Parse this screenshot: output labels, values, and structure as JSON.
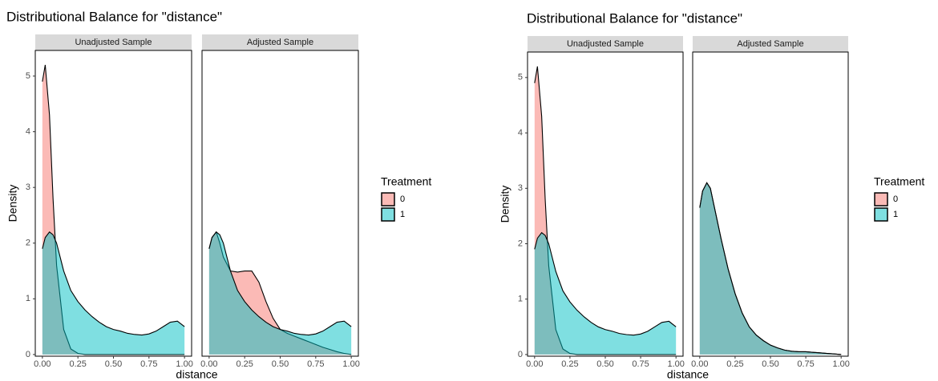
{
  "chart_data": [
    {
      "type": "area",
      "title": "Distributional Balance for \"distance\"",
      "xlabel": "distance",
      "ylabel": "Density",
      "legend_title": "Treatment",
      "alpha": 0.5,
      "series": [
        {
          "name": "0",
          "color": "#F8766D"
        },
        {
          "name": "1",
          "color": "#00BFC4"
        }
      ],
      "x": [
        0,
        0.02,
        0.05,
        0.075,
        0.1,
        0.15,
        0.2,
        0.25,
        0.3,
        0.35,
        0.4,
        0.45,
        0.5,
        0.55,
        0.6,
        0.65,
        0.7,
        0.75,
        0.8,
        0.85,
        0.9,
        0.95,
        1.0
      ],
      "xlim": [
        -0.05,
        1.05
      ],
      "xticks": [
        {
          "value": 0,
          "label": "0.00"
        },
        {
          "value": 0.25,
          "label": "0.25"
        },
        {
          "value": 0.5,
          "label": "0.50"
        },
        {
          "value": 0.75,
          "label": "0.75"
        },
        {
          "value": 1,
          "label": "1.00"
        }
      ],
      "ylim": [
        -0.03,
        5.46
      ],
      "yticks": [
        0,
        1,
        2,
        3,
        4,
        5
      ],
      "facets": [
        {
          "title": "Unadjusted Sample",
          "values": [
            [
              4.9,
              5.2,
              4.3,
              2.8,
              1.6,
              0.45,
              0.1,
              0.02,
              0,
              0,
              0,
              0,
              0,
              0,
              0,
              0,
              0,
              0,
              0,
              0,
              0,
              0,
              0
            ],
            [
              1.9,
              2.1,
              2.2,
              2.15,
              2.0,
              1.5,
              1.15,
              0.95,
              0.8,
              0.68,
              0.58,
              0.5,
              0.45,
              0.42,
              0.38,
              0.36,
              0.35,
              0.37,
              0.42,
              0.5,
              0.58,
              0.6,
              0.5
            ]
          ]
        },
        {
          "title": "Adjusted Sample",
          "values": [
            [
              1.9,
              2.1,
              2.2,
              2.0,
              1.75,
              1.5,
              1.48,
              1.5,
              1.5,
              1.3,
              0.95,
              0.65,
              0.45,
              0.38,
              0.33,
              0.28,
              0.23,
              0.18,
              0.13,
              0.09,
              0.05,
              0.02,
              0
            ],
            [
              1.9,
              2.1,
              2.2,
              2.15,
              2.0,
              1.5,
              1.15,
              0.95,
              0.8,
              0.68,
              0.58,
              0.5,
              0.45,
              0.42,
              0.38,
              0.36,
              0.35,
              0.37,
              0.42,
              0.5,
              0.58,
              0.6,
              0.5
            ]
          ]
        }
      ]
    },
    {
      "type": "area",
      "title": "Distributional Balance for \"distance\"",
      "xlabel": "distance",
      "ylabel": "Density",
      "legend_title": "Treatment",
      "alpha": 0.5,
      "series": [
        {
          "name": "0",
          "color": "#F8766D"
        },
        {
          "name": "1",
          "color": "#00BFC4"
        }
      ],
      "x": [
        0,
        0.02,
        0.05,
        0.075,
        0.1,
        0.15,
        0.2,
        0.25,
        0.3,
        0.35,
        0.4,
        0.45,
        0.5,
        0.55,
        0.6,
        0.65,
        0.7,
        0.75,
        0.8,
        0.85,
        0.9,
        0.95,
        1.0
      ],
      "xlim": [
        -0.05,
        1.05
      ],
      "xticks": [
        {
          "value": 0,
          "label": "0.00"
        },
        {
          "value": 0.25,
          "label": "0.25"
        },
        {
          "value": 0.5,
          "label": "0.50"
        },
        {
          "value": 0.75,
          "label": "0.75"
        },
        {
          "value": 1,
          "label": "1.00"
        }
      ],
      "ylim": [
        -0.03,
        5.46
      ],
      "yticks": [
        0,
        1,
        2,
        3,
        4,
        5
      ],
      "facets": [
        {
          "title": "Unadjusted Sample",
          "values": [
            [
              4.9,
              5.2,
              4.3,
              2.8,
              1.6,
              0.45,
              0.1,
              0.02,
              0,
              0,
              0,
              0,
              0,
              0,
              0,
              0,
              0,
              0,
              0,
              0,
              0,
              0,
              0
            ],
            [
              1.9,
              2.1,
              2.2,
              2.15,
              2.0,
              1.5,
              1.15,
              0.95,
              0.8,
              0.68,
              0.58,
              0.5,
              0.45,
              0.42,
              0.38,
              0.36,
              0.35,
              0.37,
              0.42,
              0.5,
              0.58,
              0.6,
              0.5
            ]
          ]
        },
        {
          "title": "Adjusted Sample",
          "values": [
            [
              2.65,
              2.95,
              3.1,
              3.0,
              2.7,
              2.1,
              1.55,
              1.1,
              0.75,
              0.5,
              0.35,
              0.25,
              0.17,
              0.12,
              0.08,
              0.06,
              0.05,
              0.05,
              0.04,
              0.03,
              0.02,
              0.01,
              0
            ],
            [
              2.65,
              2.95,
              3.1,
              3.0,
              2.7,
              2.1,
              1.55,
              1.1,
              0.75,
              0.5,
              0.35,
              0.25,
              0.17,
              0.12,
              0.08,
              0.06,
              0.05,
              0.05,
              0.04,
              0.03,
              0.02,
              0.01,
              0
            ]
          ]
        }
      ]
    }
  ]
}
